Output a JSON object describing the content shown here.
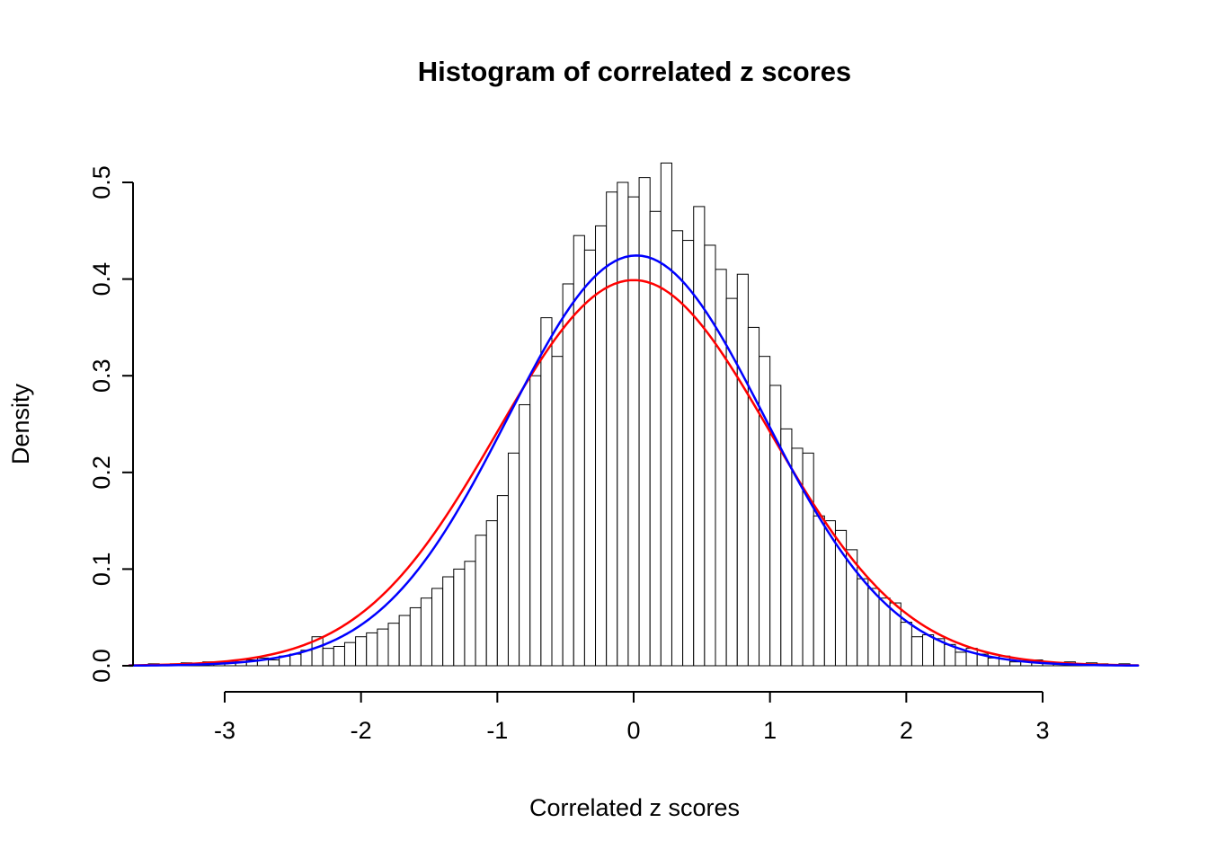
{
  "chart_data": {
    "type": "bar",
    "subtype": "histogram",
    "title": "Histogram of correlated z scores",
    "xlabel": "Correlated z scores",
    "ylabel": "Density",
    "xlim": [
      -3.7,
      3.7
    ],
    "ylim": [
      0,
      0.52
    ],
    "x_ticks": [
      -3,
      -2,
      -1,
      0,
      1,
      2,
      3
    ],
    "y_ticks": [
      {
        "value": 0.0,
        "label": "0.0"
      },
      {
        "value": 0.1,
        "label": "0.1"
      },
      {
        "value": 0.2,
        "label": "0.2"
      },
      {
        "value": 0.3,
        "label": "0.3"
      },
      {
        "value": 0.4,
        "label": "0.4"
      },
      {
        "value": 0.5,
        "label": "0.5"
      }
    ],
    "grid": false,
    "legend": "none",
    "bar_fill": "#ffffff",
    "bar_stroke": "#000000",
    "bins": {
      "start": -3.64,
      "width": 0.08,
      "heights": [
        0,
        0.002,
        0,
        0.002,
        0.003,
        0.002,
        0.004,
        0.003,
        0.005,
        0.004,
        0.006,
        0.008,
        0.006,
        0.01,
        0.012,
        0.016,
        0.03,
        0.018,
        0.02,
        0.024,
        0.03,
        0.034,
        0.038,
        0.044,
        0.052,
        0.06,
        0.07,
        0.08,
        0.092,
        0.1,
        0.108,
        0.135,
        0.15,
        0.176,
        0.22,
        0.27,
        0.3,
        0.36,
        0.32,
        0.395,
        0.445,
        0.43,
        0.455,
        0.49,
        0.5,
        0.485,
        0.505,
        0.47,
        0.52,
        0.45,
        0.44,
        0.475,
        0.435,
        0.41,
        0.38,
        0.405,
        0.35,
        0.32,
        0.29,
        0.245,
        0.225,
        0.22,
        0.155,
        0.15,
        0.14,
        0.12,
        0.09,
        0.08,
        0.07,
        0.065,
        0.045,
        0.03,
        0.032,
        0.028,
        0.022,
        0.014,
        0.018,
        0.012,
        0.008,
        0.01,
        0.004,
        0.005,
        0.006,
        0.004,
        0.003,
        0.004,
        0.002,
        0.003,
        0.002,
        0,
        0.002
      ]
    },
    "curves": [
      {
        "name": "standard-normal-curve",
        "color": "#ff0000",
        "mean": 0.0,
        "sd": 1.0,
        "peak_density": 0.399
      },
      {
        "name": "fitted-normal-curve",
        "color": "#0000ff",
        "mean": 0.02,
        "sd": 0.94,
        "peak_density": 0.424
      }
    ]
  }
}
